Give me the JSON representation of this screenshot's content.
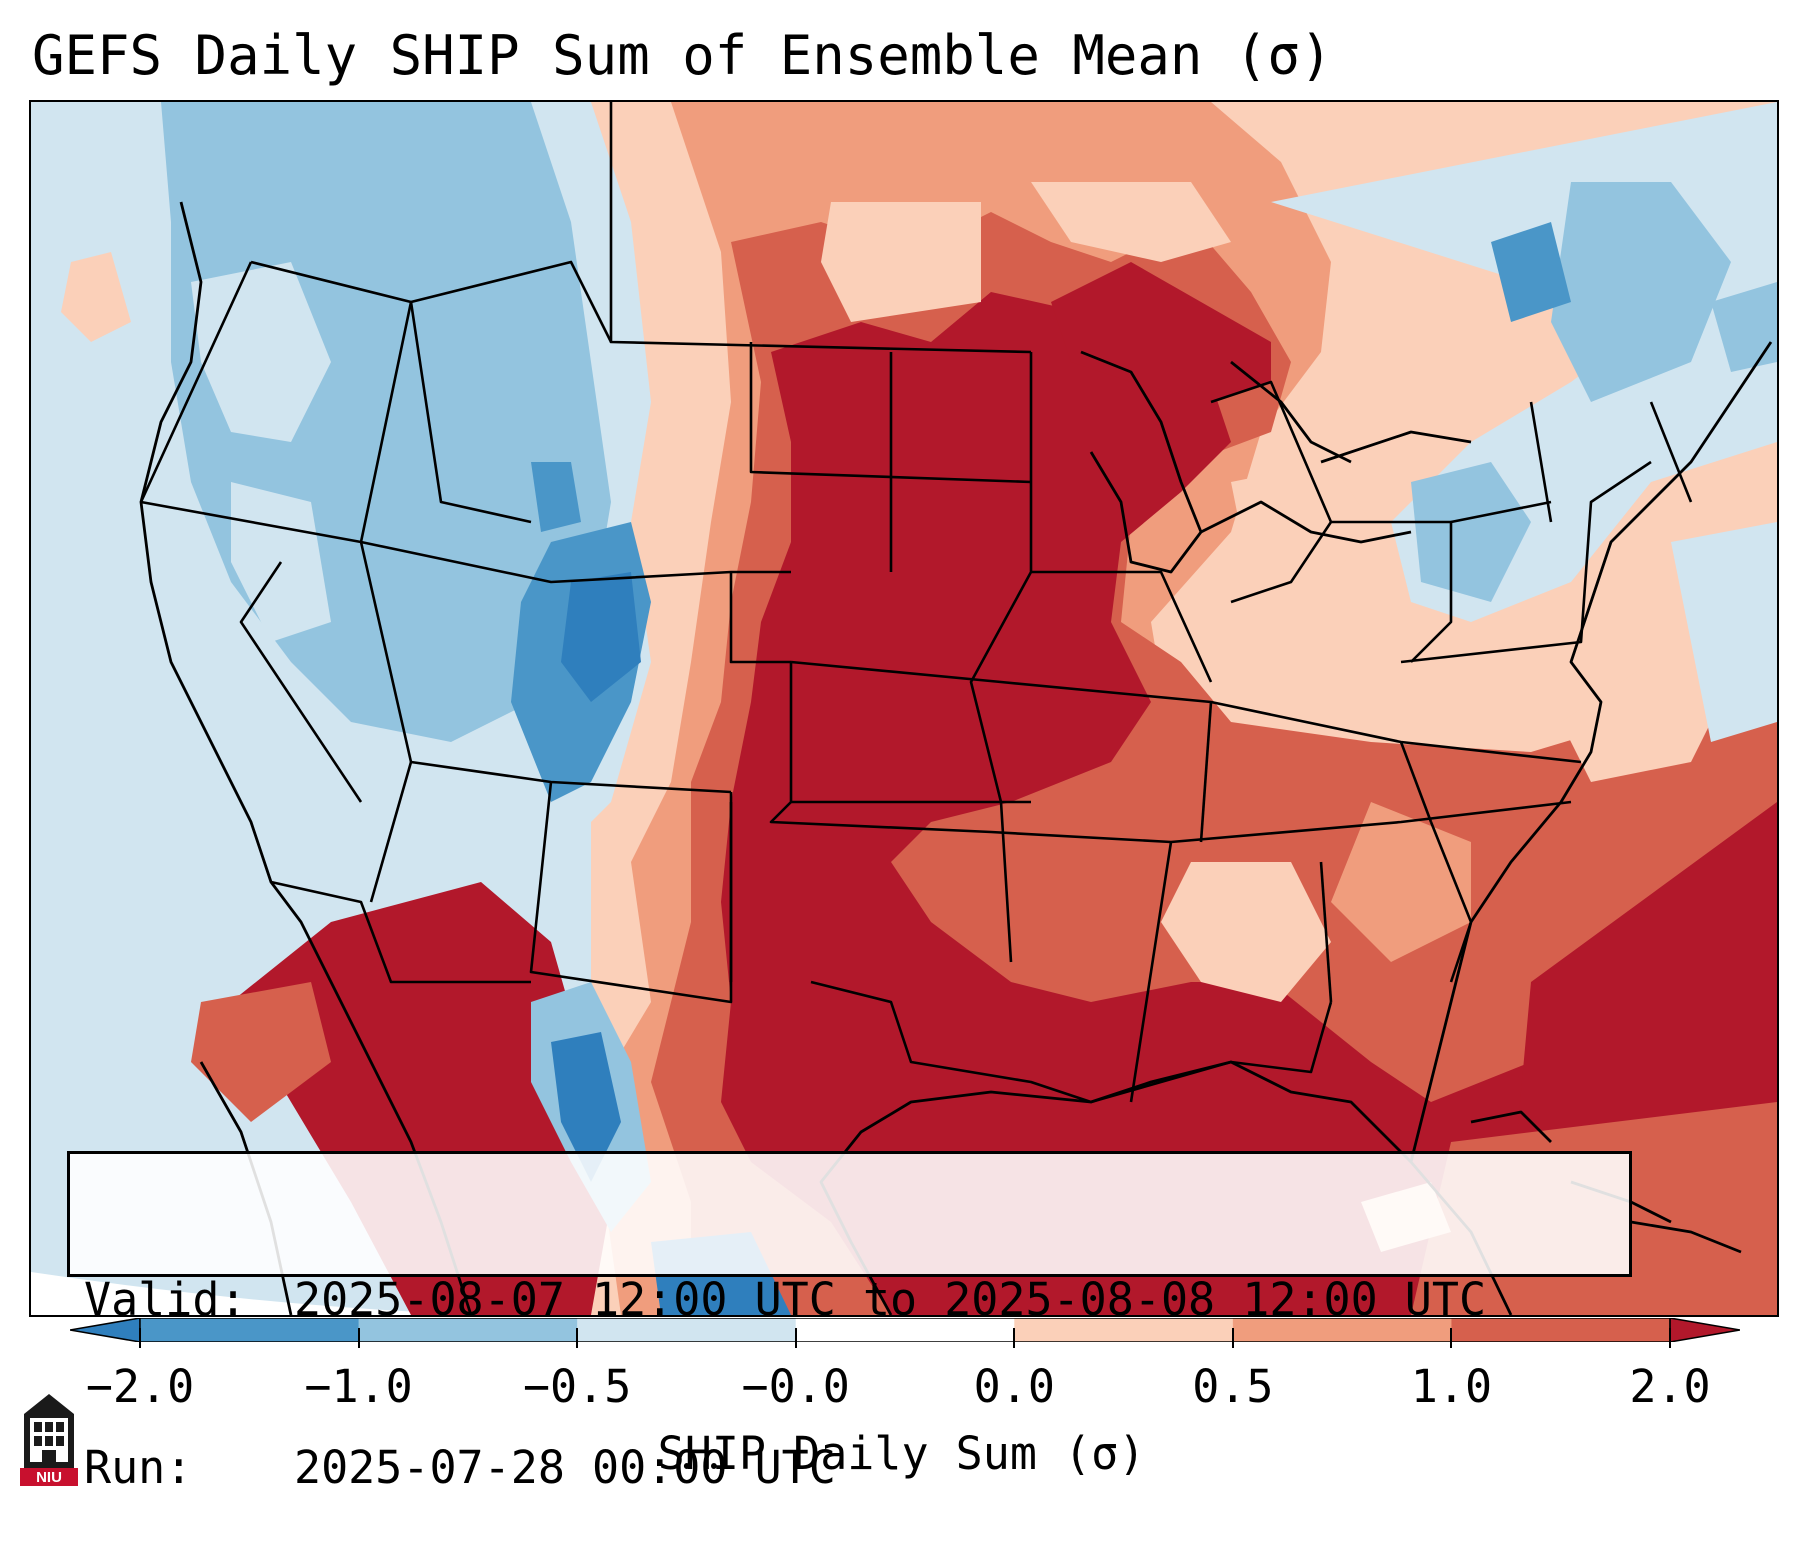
{
  "title": "GEFS Daily SHIP Sum of Ensemble Mean (σ)",
  "info": {
    "valid_label": "Valid:",
    "valid_value": "2025-08-07 12:00 UTC to 2025-08-08 12:00 UTC",
    "run_label": "Run:",
    "run_value": "2025-07-28 00:00 UTC"
  },
  "colorbar": {
    "title": "SHIP Daily Sum (σ)",
    "tick_labels": [
      "−2.0",
      "−1.0",
      "−0.5",
      "−0.0",
      "0.0",
      "0.5",
      "1.0",
      "2.0"
    ],
    "bins": [
      {
        "color": "#2f7fbd"
      },
      {
        "color": "#4a96c8"
      },
      {
        "color": "#93c4df"
      },
      {
        "color": "#d1e5f0"
      },
      {
        "color": "#ffffff"
      },
      {
        "color": "#fbd0b9"
      },
      {
        "color": "#f09d7d"
      },
      {
        "color": "#d6604d"
      },
      {
        "color": "#b2182b"
      }
    ]
  },
  "logo": {
    "text": "NIU",
    "icon": "niu-building-icon",
    "color": "#c8102e"
  },
  "map": {
    "projection": "lambert-conformal",
    "region": "CONUS",
    "background_color": "#d1e5f0"
  }
}
